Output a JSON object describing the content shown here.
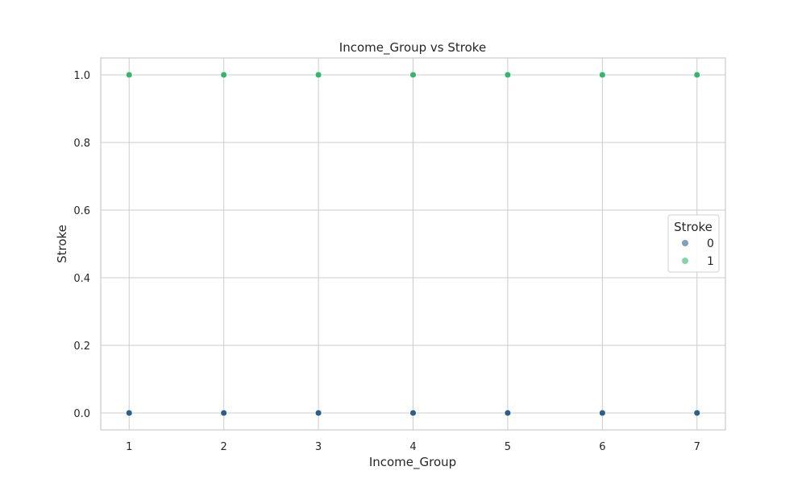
{
  "chart_data": {
    "type": "scatter",
    "title": "Income_Group vs Stroke",
    "xlabel": "Income_Group",
    "ylabel": "Stroke",
    "xlim": [
      0.7,
      7.3
    ],
    "ylim": [
      -0.05,
      1.05
    ],
    "xticks": [
      1,
      2,
      3,
      4,
      5,
      6,
      7
    ],
    "yticks": [
      "0.0",
      "0.2",
      "0.4",
      "0.6",
      "0.8",
      "1.0"
    ],
    "grid": true,
    "legend": {
      "title": "Stroke",
      "placement": "center-right",
      "entries": [
        "0",
        "1"
      ]
    },
    "series": [
      {
        "name": "0",
        "color": "#2d5f88",
        "points": [
          [
            1,
            0
          ],
          [
            2,
            0
          ],
          [
            3,
            0
          ],
          [
            4,
            0
          ],
          [
            5,
            0
          ],
          [
            6,
            0
          ],
          [
            7,
            0
          ]
        ]
      },
      {
        "name": "1",
        "color": "#35b66f",
        "points": [
          [
            1,
            1
          ],
          [
            2,
            1
          ],
          [
            3,
            1
          ],
          [
            4,
            1
          ],
          [
            5,
            1
          ],
          [
            6,
            1
          ],
          [
            7,
            1
          ]
        ]
      }
    ]
  }
}
